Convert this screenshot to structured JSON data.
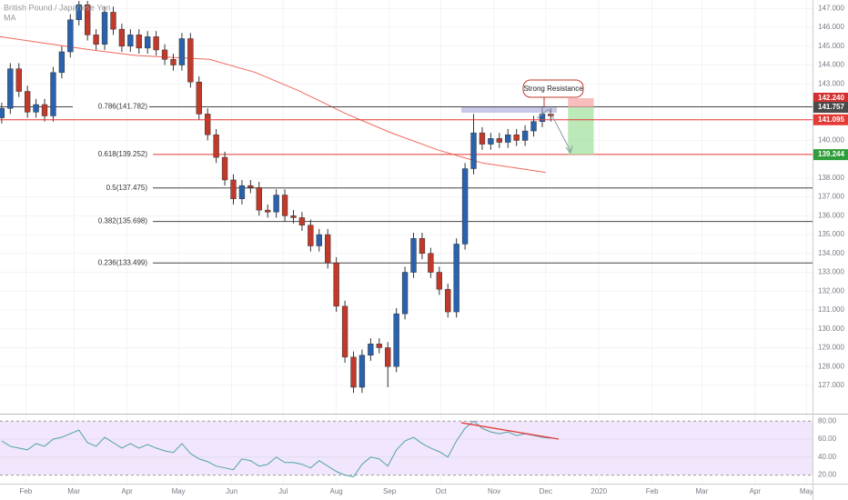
{
  "chart_data": [
    {
      "type": "candlestick",
      "title": "British Pound / Japanese Yen",
      "indicator_label": "MA",
      "up_color": "#2a62ad",
      "down_color": "#c0392b",
      "x": [
        17,
        22,
        27,
        32,
        37,
        42,
        47,
        52,
        57,
        62,
        67,
        72,
        77,
        82,
        87,
        92,
        97,
        102,
        107,
        112,
        117,
        122,
        127,
        132,
        137,
        142,
        147,
        152,
        157,
        162,
        167,
        172,
        177,
        182,
        187,
        192,
        197,
        202,
        207,
        212,
        217,
        222,
        227,
        232,
        237,
        242,
        247,
        252,
        257,
        262,
        267,
        272,
        277,
        282,
        287,
        292,
        297,
        302,
        307,
        312,
        317,
        322,
        327,
        332,
        337
      ],
      "open": [
        141.2,
        141.7,
        143.8,
        142.6,
        141.5,
        141.9,
        141.3,
        143.6,
        144.7,
        146.4,
        147.2,
        145.6,
        145.1,
        146.8,
        145.9,
        145.0,
        145.6,
        144.9,
        145.5,
        144.8,
        144.3,
        144.0,
        145.4,
        143.1,
        141.4,
        140.3,
        139.1,
        137.9,
        136.9,
        137.6,
        137.5,
        136.3,
        136.2,
        137.1,
        136.0,
        135.9,
        135.5,
        134.4,
        135.0,
        133.5,
        131.2,
        128.5,
        126.9,
        128.6,
        129.2,
        129.0,
        128.0,
        130.8,
        133.0,
        134.8,
        134.0,
        133.0,
        132.1,
        130.9,
        134.5,
        138.5,
        140.4,
        139.8,
        140.1,
        139.9,
        140.3,
        140.0,
        140.5,
        141.0,
        141.4
      ],
      "high": [
        142.0,
        144.1,
        144.1,
        142.9,
        142.2,
        142.2,
        143.9,
        145.0,
        146.7,
        147.4,
        147.4,
        145.9,
        147.1,
        147.1,
        146.2,
        145.9,
        145.9,
        145.8,
        145.8,
        145.1,
        144.6,
        145.7,
        145.7,
        143.4,
        141.7,
        140.6,
        139.4,
        138.2,
        137.9,
        137.9,
        137.8,
        136.6,
        137.4,
        137.4,
        136.3,
        136.2,
        135.8,
        135.3,
        135.3,
        133.8,
        131.5,
        128.8,
        128.9,
        129.5,
        129.5,
        129.3,
        131.1,
        133.3,
        135.1,
        135.1,
        134.3,
        133.3,
        132.4,
        134.8,
        138.8,
        141.4,
        140.7,
        140.4,
        140.4,
        140.6,
        140.6,
        140.8,
        141.3,
        141.8,
        141.7
      ],
      "low": [
        140.9,
        141.4,
        142.3,
        141.2,
        141.2,
        141.0,
        141.0,
        143.3,
        144.4,
        146.1,
        145.3,
        144.8,
        144.8,
        145.6,
        144.7,
        144.7,
        144.6,
        144.6,
        144.5,
        144.0,
        143.7,
        143.7,
        142.8,
        141.1,
        140.0,
        138.8,
        137.6,
        136.6,
        136.6,
        137.2,
        136.0,
        135.9,
        135.9,
        135.7,
        135.6,
        135.2,
        134.1,
        134.1,
        133.2,
        130.9,
        128.2,
        126.6,
        126.6,
        128.3,
        128.7,
        126.9,
        127.7,
        130.5,
        132.7,
        133.7,
        132.7,
        131.8,
        130.6,
        130.6,
        134.2,
        138.2,
        139.5,
        139.5,
        139.6,
        139.6,
        139.7,
        139.7,
        140.2,
        140.7,
        141.0
      ],
      "close": [
        141.7,
        143.8,
        142.6,
        141.5,
        141.9,
        141.3,
        143.6,
        144.7,
        146.4,
        147.2,
        145.6,
        145.1,
        146.8,
        145.9,
        145.0,
        145.6,
        144.9,
        145.5,
        144.8,
        144.3,
        144.0,
        145.4,
        143.1,
        141.4,
        140.3,
        139.1,
        137.9,
        136.9,
        137.6,
        137.5,
        136.3,
        136.2,
        137.1,
        136.0,
        135.9,
        135.5,
        134.4,
        135.0,
        133.5,
        131.2,
        128.5,
        126.9,
        128.6,
        129.2,
        129.0,
        128.0,
        130.8,
        133.0,
        134.8,
        134.0,
        133.0,
        132.1,
        130.9,
        134.5,
        138.5,
        140.4,
        139.8,
        140.1,
        139.9,
        140.3,
        140.0,
        140.5,
        141.0,
        141.4,
        141.3
      ],
      "ma": {
        "name": "MA",
        "color": "#f0685a",
        "x": [
          16,
          69,
          96,
          138,
          165,
          191,
          218,
          244,
          271,
          297,
          334
        ],
        "values": [
          145.5,
          144.8,
          144.5,
          144.3,
          143.6,
          142.6,
          141.4,
          140.4,
          139.5,
          138.8,
          138.3
        ]
      },
      "levels": [
        {
          "label": "0.786(141.782)",
          "value": 141.782,
          "color": "#444444"
        },
        {
          "label": "0.618(139.252)",
          "value": 139.252,
          "color": "#e53935"
        },
        {
          "label": "0.5(137.475)",
          "value": 137.475,
          "color": "#444444"
        },
        {
          "label": "0.382(135.698)",
          "value": 135.698,
          "color": "#444444"
        },
        {
          "label": "0.236(133.499)",
          "value": 133.499,
          "color": "#444444"
        }
      ],
      "price_labels": [
        {
          "label": "142.240",
          "value": 142.24,
          "color": "#d32f2f",
          "line": false
        },
        {
          "label": "141.757",
          "value": 141.757,
          "color": "#4a4a4a",
          "line": false
        },
        {
          "label": "141.095",
          "value": 141.095,
          "color": "#e53935",
          "line": true
        },
        {
          "label": "139.244",
          "value": 139.244,
          "color": "#2e9d3a",
          "line": false
        }
      ],
      "position": {
        "x": [
          347,
          362
        ],
        "entry": 141.757,
        "stop": 142.24,
        "target": 139.244
      },
      "annotation": "Strong Resistance",
      "xlim": [
        16,
        489.5
      ],
      "xticks": [
        {
          "value": 31,
          "label": "Feb"
        },
        {
          "value": 59,
          "label": "Mar"
        },
        {
          "value": 90,
          "label": "Apr"
        },
        {
          "value": 120,
          "label": "May"
        },
        {
          "value": 151,
          "label": "Jun"
        },
        {
          "value": 181,
          "label": "Jul"
        },
        {
          "value": 212,
          "label": "Aug"
        },
        {
          "value": 243,
          "label": "Sep"
        },
        {
          "value": 273,
          "label": "Oct"
        },
        {
          "value": 304,
          "label": "Nov"
        },
        {
          "value": 334,
          "label": "Dec"
        },
        {
          "value": 365,
          "label": "2020"
        },
        {
          "value": 396,
          "label": "Feb"
        },
        {
          "value": 425,
          "label": "Mar"
        },
        {
          "value": 456,
          "label": "Apr"
        },
        {
          "value": 486,
          "label": "May"
        }
      ],
      "ylim": [
        125.5,
        147.45
      ],
      "yticks": [
        {
          "value": 127,
          "label": "127.000"
        },
        {
          "value": 128,
          "label": "128.000"
        },
        {
          "value": 129,
          "label": "129.000"
        },
        {
          "value": 130,
          "label": "130.000"
        },
        {
          "value": 131,
          "label": "131.000"
        },
        {
          "value": 132,
          "label": "132.000"
        },
        {
          "value": 133,
          "label": "133.000"
        },
        {
          "value": 134,
          "label": "134.000"
        },
        {
          "value": 135,
          "label": "135.000"
        },
        {
          "value": 136,
          "label": "136.000"
        },
        {
          "value": 137,
          "label": "137.000"
        },
        {
          "value": 138,
          "label": "138.000"
        },
        {
          "value": 140,
          "label": "140.000"
        },
        {
          "value": 143,
          "label": "143.000"
        },
        {
          "value": 144,
          "label": "144.000"
        },
        {
          "value": 145,
          "label": "145.000"
        },
        {
          "value": 146,
          "label": "146.000"
        },
        {
          "value": 147,
          "label": "147.000"
        }
      ]
    },
    {
      "type": "line",
      "name": "RSI",
      "color": "#4fa3a8",
      "x": [
        17,
        22,
        27,
        32,
        37,
        42,
        47,
        52,
        57,
        62,
        67,
        72,
        77,
        82,
        87,
        92,
        97,
        102,
        107,
        112,
        117,
        122,
        127,
        132,
        137,
        142,
        147,
        152,
        157,
        162,
        167,
        172,
        177,
        182,
        187,
        192,
        197,
        202,
        207,
        212,
        217,
        222,
        227,
        232,
        237,
        242,
        247,
        252,
        257,
        262,
        267,
        272,
        277,
        282,
        287,
        292,
        297,
        302,
        307,
        312,
        317,
        322,
        327,
        332,
        337
      ],
      "values": [
        58,
        52,
        50,
        48,
        55,
        52,
        60,
        62,
        66,
        70,
        56,
        52,
        62,
        56,
        50,
        55,
        50,
        54,
        50,
        47,
        45,
        55,
        44,
        38,
        35,
        30,
        28,
        26,
        38,
        36,
        30,
        32,
        40,
        34,
        34,
        32,
        28,
        36,
        30,
        24,
        20,
        18,
        32,
        40,
        38,
        30,
        48,
        58,
        62,
        55,
        50,
        46,
        40,
        58,
        72,
        80,
        72,
        68,
        66,
        68,
        64,
        66,
        64,
        62,
        61
      ],
      "ylim": [
        10.5,
        87.3
      ],
      "yticks": [
        {
          "value": 20,
          "label": "20.00"
        },
        {
          "value": 40,
          "label": "40.00"
        },
        {
          "value": 60,
          "label": "60.00"
        },
        {
          "value": 80,
          "label": "80.00"
        }
      ]
    }
  ]
}
